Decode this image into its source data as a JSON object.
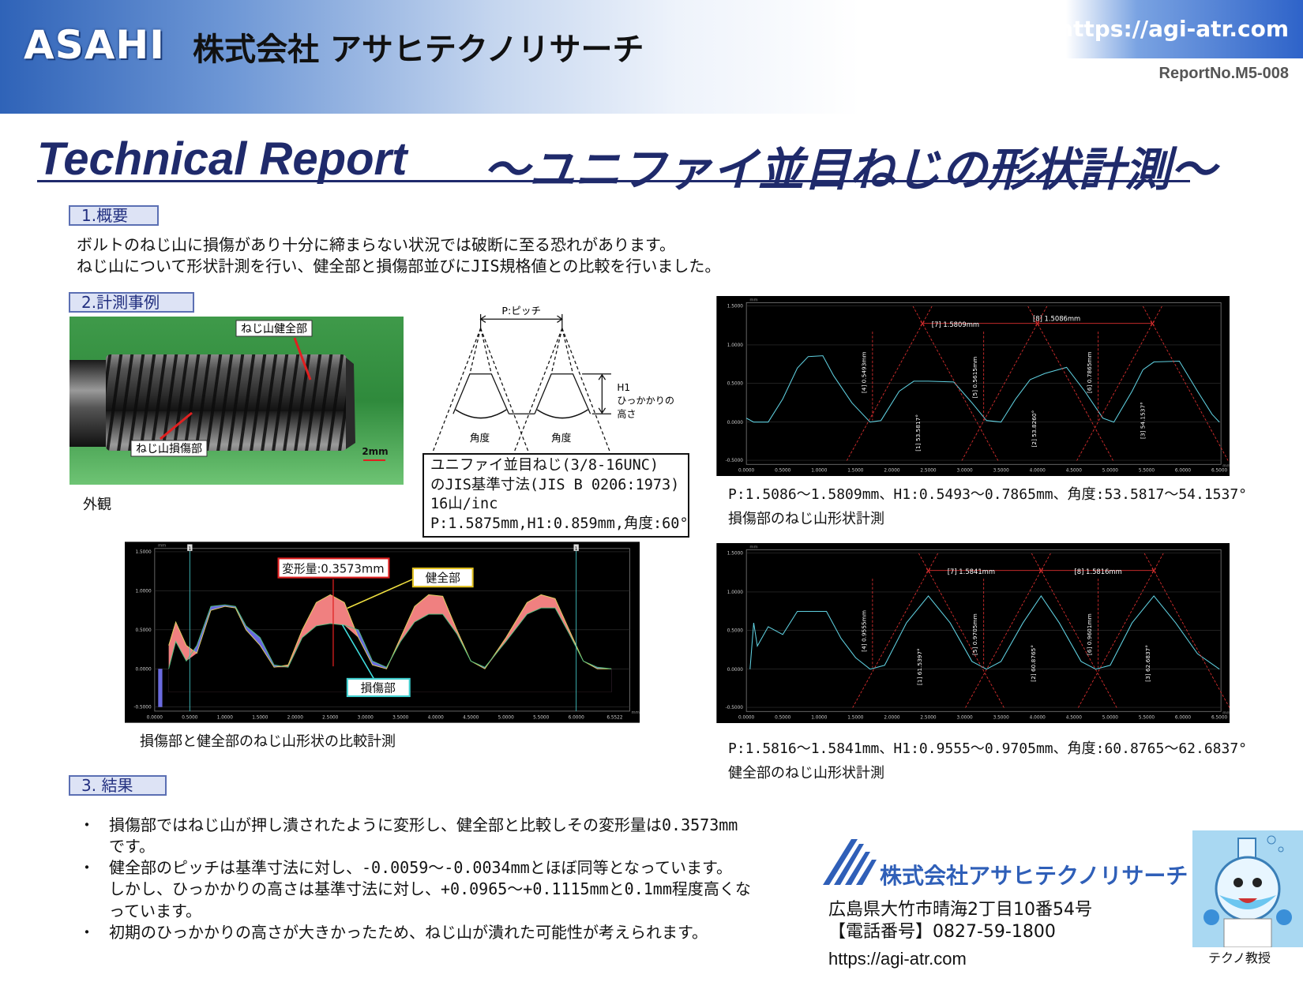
{
  "header": {
    "logo": "ASAHI",
    "company": "株式会社 アサヒテクノリサーチ",
    "url": "https://agi-atr.com",
    "report_no": "ReportNo.M5-008"
  },
  "title_en": "Technical Report",
  "title_jp": "～ユニファイ並目ねじの形状計測～",
  "sections": [
    {
      "heading": "1.概要",
      "paragraphs": [
        "ボルトのねじ山に損傷があり十分に締まらない状況では破断に至る恐れがあります。",
        "ねじ山について形状計測を行い、健全部と損傷部並びにJIS規格値との比較を行いました。"
      ]
    },
    {
      "heading": "2.計測事例"
    },
    {
      "heading": "3. 結果",
      "bullet_mark": "・",
      "bullets": [
        [
          "損傷部ではねじ山が押し潰されたように変形し、健全部と比較しその変形量は0.3573mm",
          "です。"
        ],
        [
          "健全部のピッチは基準寸法に対し、-0.0059～-0.0034mmとほぼ同等となっています。",
          "しかし、ひっかかりの高さは基準寸法に対し、+0.0965～+0.1115mmと0.1mm程度高くな",
          "っています。"
        ],
        [
          "初期のひっかかりの高さが大きかったため、ねじ山が潰れた可能性が考えられます。"
        ]
      ]
    }
  ],
  "photo": {
    "healthy_label": "ねじ山健全部",
    "damaged_label": "ねじ山損傷部",
    "scale": "2mm",
    "caption": "外観"
  },
  "diagram": {
    "pitch": "P:ピッチ",
    "h1": [
      "H1",
      "ひっかかりの",
      "高さ"
    ],
    "angle": "角度",
    "spec": [
      "ユニファイ並目ねじ(3/8-16UNC)",
      "のJIS基準寸法(JIS B 0206:1973)",
      "16山/inc",
      "P:1.5875mm,H1:0.859mm,角度:60°"
    ]
  },
  "axis": {
    "unit": "mm",
    "yticks": [
      "1.5000",
      "1.0000",
      "0.5000",
      "0.0000",
      "-0.5000"
    ],
    "xticks": [
      "0.0000",
      "0.5000",
      "1.0000",
      "1.5000",
      "2.0000",
      "2.5000",
      "3.0000",
      "3.5000",
      "4.0000",
      "4.5000",
      "5.0000",
      "5.5000",
      "6.0000",
      "6.5000"
    ]
  },
  "comparison": {
    "xticks": [
      "0.0000",
      "0.5000",
      "1.0000",
      "1.5000",
      "2.0000",
      "2.5000",
      "3.0000",
      "3.5000",
      "4.0000",
      "4.5000",
      "5.0000",
      "5.5000",
      "6.0000",
      "6.5522"
    ],
    "cursor": "1",
    "deformation": "変形量:0.3573mm",
    "healthy": "健全部",
    "damaged": "損傷部",
    "caption": "損傷部と健全部のねじ山形状の比較計測"
  },
  "damaged_graph": {
    "pitch_labels": [
      "[7] 1.5809mm",
      "[8] 1.5086mm"
    ],
    "height_labels": [
      "[4] 0.5493mm",
      "[5] 0.5615mm",
      "[6] 0.7865mm"
    ],
    "angle_labels": [
      "[1] 53.5817°",
      "[2] 53.8260°",
      "[3] 54.1537°"
    ],
    "summary": "P:1.5086～1.5809mm、H1:0.5493～0.7865mm、角度:53.5817～54.1537°",
    "caption": "損傷部のねじ山形状計測"
  },
  "healthy_graph": {
    "pitch_labels": [
      "[7] 1.5841mm",
      "[8] 1.5816mm"
    ],
    "height_labels": [
      "[4] 0.9555mm",
      "[5] 0.9705mm",
      "[6] 0.9601mm"
    ],
    "angle_labels": [
      "[1] 61.5397°",
      "[2] 60.8765°",
      "[3] 62.6837°"
    ],
    "summary": "P:1.5816～1.5841mm、H1:0.9555～0.9705mm、角度:60.8765～62.6837°",
    "caption": "健全部のねじ山形状計測"
  },
  "footer": {
    "company": "株式会社アサヒテクノリサーチ",
    "address": "広島県大竹市晴海2丁目10番54号",
    "phone": "【電話番号】0827-59-1800",
    "url": "https://agi-atr.com",
    "mascot": "テクノ教授"
  }
}
